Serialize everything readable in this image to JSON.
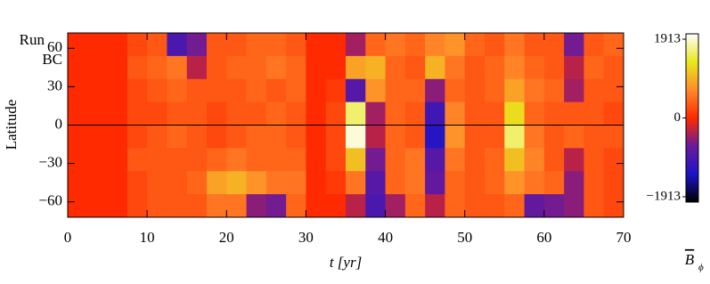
{
  "chart_data": {
    "type": "heatmap",
    "xlabel": "t [yr]",
    "ylabel": "Latitude",
    "annotation": [
      "Run",
      "BC"
    ],
    "colorbar_label": {
      "symbol": "B",
      "subscript": "ϕ"
    },
    "xlim": [
      0,
      70
    ],
    "ylim": [
      -72,
      72
    ],
    "xticks": [
      0,
      10,
      20,
      30,
      40,
      50,
      60,
      70
    ],
    "yticks": [
      {
        "value": -60,
        "label": "−60"
      },
      {
        "value": -30,
        "label": "−30"
      },
      0,
      30,
      60
    ],
    "zlim": [
      -1913,
      1913
    ],
    "zticks": [
      {
        "value": -1913,
        "label": "−1913"
      },
      0,
      1913
    ],
    "colormap": [
      "#000000",
      "#1c14c8",
      "#6a1a9a",
      "#ff2a00",
      "#ff8a2a",
      "#e8e81c",
      "#ffffff"
    ],
    "hline": 0,
    "x": [
      1.25,
      3.75,
      6.25,
      8.75,
      11.25,
      13.75,
      16.25,
      18.75,
      21.25,
      23.75,
      26.25,
      28.75,
      31.25,
      33.75,
      36.25,
      38.75,
      41.25,
      43.75,
      46.25,
      48.75,
      51.25,
      53.75,
      56.25,
      58.75,
      61.25,
      63.75,
      66.25,
      68.75
    ],
    "y": [
      63,
      45,
      27,
      9,
      -9,
      -27,
      -45,
      -63
    ],
    "z": [
      [
        0,
        0,
        0,
        200,
        300,
        -900,
        -600,
        300,
        300,
        400,
        400,
        300,
        0,
        0,
        -400,
        400,
        500,
        400,
        600,
        700,
        400,
        300,
        500,
        300,
        300,
        -600,
        300,
        400
      ],
      [
        0,
        0,
        0,
        300,
        400,
        500,
        -300,
        300,
        400,
        400,
        500,
        400,
        0,
        0,
        800,
        900,
        400,
        300,
        900,
        500,
        300,
        400,
        600,
        400,
        300,
        -300,
        400,
        300
      ],
      [
        0,
        0,
        0,
        200,
        300,
        400,
        300,
        300,
        300,
        400,
        300,
        400,
        0,
        100,
        -800,
        700,
        400,
        400,
        -500,
        400,
        300,
        400,
        800,
        500,
        400,
        -400,
        300,
        300
      ],
      [
        0,
        0,
        0,
        200,
        200,
        300,
        300,
        200,
        300,
        300,
        400,
        300,
        0,
        200,
        1500,
        -400,
        400,
        300,
        -1000,
        600,
        300,
        300,
        1200,
        400,
        300,
        300,
        300,
        200
      ],
      [
        0,
        0,
        0,
        200,
        300,
        400,
        300,
        200,
        300,
        400,
        400,
        300,
        0,
        200,
        1800,
        -300,
        400,
        300,
        -1200,
        700,
        300,
        300,
        1500,
        500,
        300,
        400,
        300,
        300
      ],
      [
        0,
        0,
        0,
        300,
        300,
        300,
        300,
        400,
        500,
        400,
        400,
        400,
        0,
        200,
        1000,
        -600,
        400,
        500,
        -800,
        500,
        300,
        400,
        1000,
        600,
        300,
        -300,
        300,
        200
      ],
      [
        0,
        0,
        0,
        200,
        300,
        300,
        400,
        800,
        900,
        700,
        500,
        500,
        0,
        100,
        500,
        -800,
        400,
        500,
        -700,
        400,
        300,
        400,
        700,
        500,
        400,
        -500,
        300,
        200
      ],
      [
        0,
        0,
        0,
        200,
        300,
        300,
        300,
        500,
        500,
        -500,
        -600,
        400,
        0,
        0,
        -300,
        -900,
        -400,
        400,
        -300,
        400,
        300,
        300,
        400,
        -700,
        -600,
        -500,
        300,
        200
      ]
    ]
  }
}
